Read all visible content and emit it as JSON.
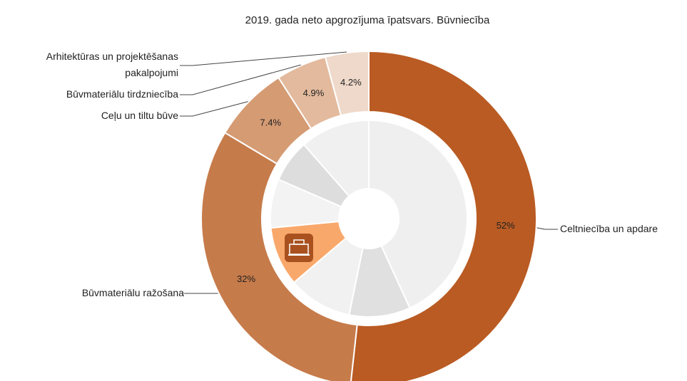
{
  "chart_data": {
    "type": "donut",
    "title": "2019. gada neto apgrozījuma īpatsvars. Būvniecība",
    "categories": [
      "Celtniecība un apdare",
      "Būvmateriālu ražošana",
      "Ceļu un tiltu būve",
      "Būvmateriālu tirdzniecība",
      "Arhitektūras un projektēšanas pakalpojumi"
    ],
    "values": [
      52,
      32,
      7.4,
      4.9,
      4.2
    ],
    "value_labels": [
      "52%",
      "32%",
      "7.4%",
      "4.9%",
      "4.2%"
    ],
    "colors": [
      "#b95b23",
      "#c67b4a",
      "#d59b73",
      "#e3ba9d",
      "#efd9ca"
    ],
    "inner_values": [
      43,
      10,
      10.5,
      9.7,
      8,
      7,
      11.4
    ],
    "inner_colors": [
      "#efefef",
      "#e0e0e0",
      "#f1f1f1",
      "#f9a86b",
      "#f3f3f3",
      "#dddddd",
      "#f0f0f0"
    ]
  }
}
